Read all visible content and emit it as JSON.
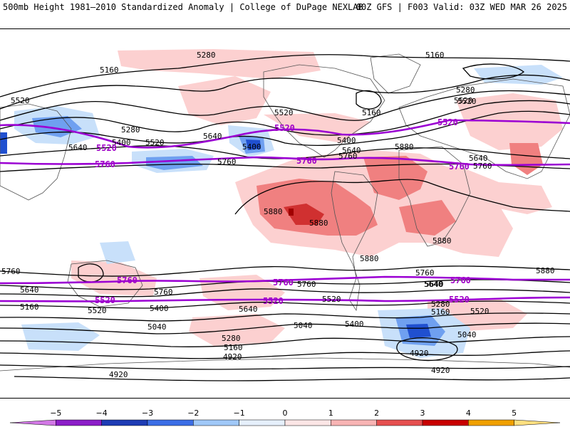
{
  "header": {
    "left_title": "500mb Height 1981–2010 Standardized Anomaly | College of DuPage NEXLAB",
    "right_title": "00Z GFS | F003 Valid: 03Z WED MAR 26 2025"
  },
  "map": {
    "contour_labels": {
      "black": [
        "5280",
        "5160",
        "5160",
        "5520",
        "5520",
        "5280",
        "5400",
        "5520",
        "5640",
        "5640",
        "5520",
        "5400",
        "5400",
        "5640",
        "5760",
        "5760",
        "5880",
        "5640",
        "5760",
        "5160",
        "5280",
        "5520",
        "5880",
        "5880",
        "5880",
        "5880",
        "5880",
        "5760",
        "5640",
        "5760",
        "5760",
        "5640",
        "5520",
        "5160",
        "5400",
        "5640",
        "5520",
        "5400",
        "5040",
        "5040",
        "5280",
        "5160",
        "4920",
        "4920",
        "4920",
        "5040",
        "5160",
        "5280",
        "5520",
        "5640",
        "5760",
        "4920"
      ],
      "highlighted": [
        "5520",
        "5760",
        "5520",
        "5760",
        "5520",
        "5760",
        "5760",
        "5520",
        "5760",
        "5520",
        "5760",
        "5520"
      ]
    },
    "colors": {
      "contour": "#000000",
      "highlight_contour": "#9b00d3",
      "land_outline": "#555555",
      "anom_pos_1": "#fcd0d0",
      "anom_pos_2": "#f08080",
      "anom_pos_3": "#d03030",
      "anom_pos_4": "#a00000",
      "anom_neg_1": "#c8e0fa",
      "anom_neg_2": "#6fa0f0",
      "anom_neg_3": "#2050d0"
    }
  },
  "colorbar": {
    "ticks": [
      "−5",
      "−4",
      "−3",
      "−2",
      "−1",
      "0",
      "1",
      "2",
      "3",
      "4",
      "5"
    ],
    "colors": [
      "#d278e6",
      "#8c1ec8",
      "#1e3cb4",
      "#3c6ee6",
      "#a0c8f8",
      "#e6f0fc",
      "#fce6e6",
      "#f8b4b4",
      "#e65050",
      "#c80000",
      "#f0a000",
      "#ffe080"
    ]
  }
}
